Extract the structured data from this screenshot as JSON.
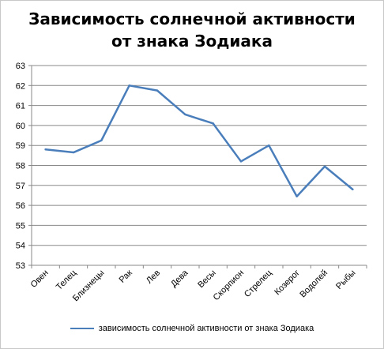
{
  "chart_data": {
    "type": "line",
    "title_line1": "Зависимость солнечной активности",
    "title_line2": "от знака Зодиака",
    "categories": [
      "Овен",
      "Телец",
      "Близнецы",
      "Рак",
      "Лев",
      "Дева",
      "Весы",
      "Скорпион",
      "Стрелец",
      "Козерог",
      "Водолей",
      "Рыбы"
    ],
    "series": [
      {
        "name": "зависимость солнечной активности  от знака Зодиака",
        "color": "#4a7ebb",
        "values": [
          58.8,
          58.65,
          59.25,
          62.0,
          61.75,
          60.55,
          60.1,
          58.2,
          59.0,
          56.45,
          57.95,
          56.8
        ]
      }
    ],
    "ylim": [
      53,
      63
    ],
    "yticks": [
      53,
      54,
      55,
      56,
      57,
      58,
      59,
      60,
      61,
      62,
      63
    ],
    "grid": true,
    "legend": "bottom"
  }
}
